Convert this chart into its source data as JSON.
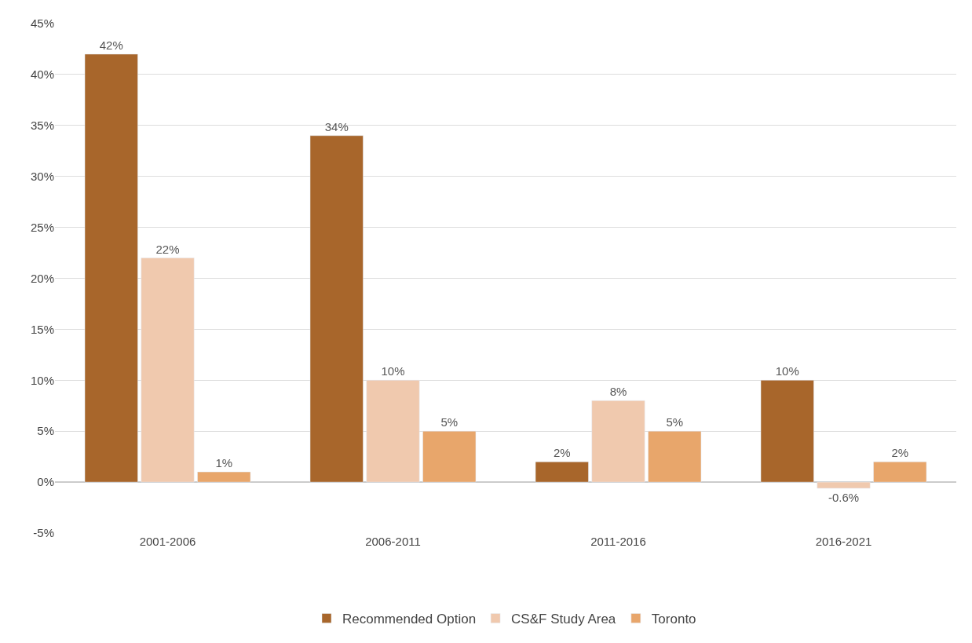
{
  "chart_data": {
    "type": "bar",
    "categories": [
      "2001-2006",
      "2006-2011",
      "2011-2016",
      "2016-2021"
    ],
    "series": [
      {
        "name": "Recommended Option",
        "color": "#a8662b",
        "values": [
          42,
          34,
          2,
          10
        ],
        "value_labels": [
          "42%",
          "34%",
          "2%",
          "10%"
        ]
      },
      {
        "name": "CS&F Study Area",
        "color": "#f0c9ae",
        "values": [
          22,
          10,
          8,
          -0.6
        ],
        "value_labels": [
          "22%",
          "10%",
          "8%",
          "-0.6%"
        ]
      },
      {
        "name": "Toronto",
        "color": "#e8a66b",
        "values": [
          1,
          5,
          5,
          2
        ],
        "value_labels": [
          "1%",
          "5%",
          "5%",
          "2%"
        ]
      }
    ],
    "ylim": [
      -5,
      45
    ],
    "yticks": [
      {
        "value": -5,
        "label": "-5%"
      },
      {
        "value": 0,
        "label": "0%"
      },
      {
        "value": 5,
        "label": "5%"
      },
      {
        "value": 10,
        "label": "10%"
      },
      {
        "value": 15,
        "label": "15%"
      },
      {
        "value": 20,
        "label": "20%"
      },
      {
        "value": 25,
        "label": "25%"
      },
      {
        "value": 30,
        "label": "30%"
      },
      {
        "value": 35,
        "label": "35%"
      },
      {
        "value": 40,
        "label": "40%"
      },
      {
        "value": 45,
        "label": "45%"
      }
    ],
    "grid": "y",
    "legend": "bottom"
  }
}
